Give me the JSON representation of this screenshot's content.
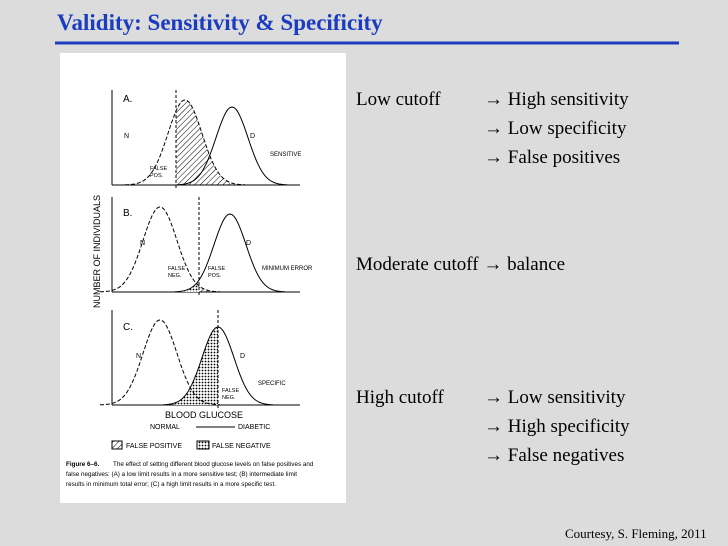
{
  "title": "Validity: Sensitivity & Specificity",
  "figure": {
    "y_axis_label": "NUMBER OF INDIVIDUALS",
    "panels": [
      {
        "label": "A.",
        "normal": "N",
        "diabetic": "D",
        "region_labels": [
          [
            "FALSE",
            "POS."
          ]
        ],
        "condition": "SENSITIVE"
      },
      {
        "label": "B.",
        "normal": "N",
        "diabetic": "D",
        "region_labels": [
          [
            "FALSE",
            "NEG."
          ],
          [
            "FALSE",
            "POS."
          ]
        ],
        "condition": "MINIMUM ERROR"
      },
      {
        "label": "C.",
        "normal": "N",
        "diabetic": "D",
        "region_labels": [
          [
            "FALSE",
            "NEG."
          ]
        ],
        "condition": "SPECIFIC"
      }
    ],
    "x_axis_label": "BLOOD GLUCOSE",
    "normal_label": "NORMAL",
    "diabetic_label": "DIABETIC",
    "legend": [
      "FALSE POSITIVE",
      "FALSE NEGATIVE"
    ],
    "caption": {
      "figure_label": "Figure 6–6.",
      "lines": [
        "The effect of setting different blood glucose levels on false positives and",
        "false negatives: (A) a low limit results in a more sensitive test; (B) intermediate limit",
        "results in minimum total error; (C) a high limit results in a more specific test."
      ]
    }
  },
  "cutoffs": [
    {
      "name": "Low cutoff",
      "effects": [
        "→ High sensitivity",
        "→ Low specificity",
        "→ False positives"
      ]
    },
    {
      "name": "Moderate cutoff → balance",
      "effects": []
    },
    {
      "name": "High cutoff",
      "effects": [
        "→ Low sensitivity",
        "→ High specificity",
        "→ False negatives"
      ]
    }
  ],
  "credit": "Courtesy, S. Fleming, 2011"
}
